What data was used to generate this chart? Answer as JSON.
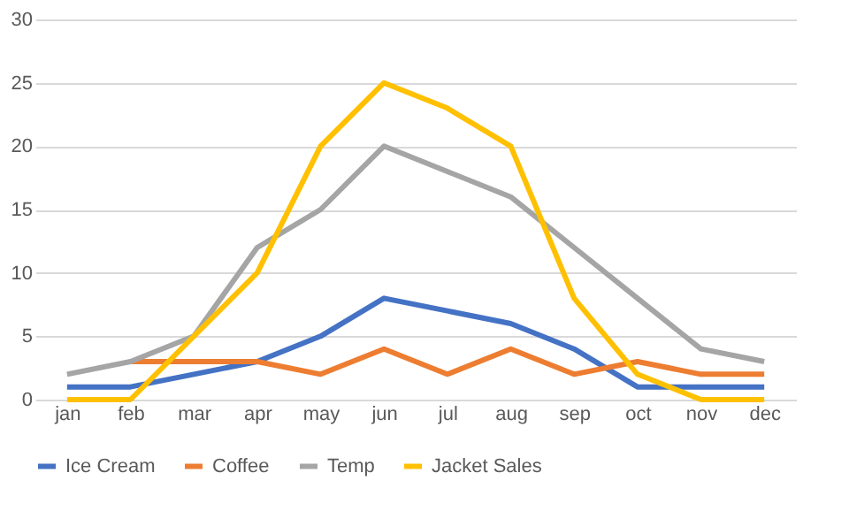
{
  "chart_data": {
    "type": "line",
    "categories": [
      "jan",
      "feb",
      "mar",
      "apr",
      "may",
      "jun",
      "jul",
      "aug",
      "sep",
      "oct",
      "nov",
      "dec"
    ],
    "series": [
      {
        "name": "Ice Cream",
        "color": "#4472c4",
        "values": [
          1,
          1,
          2,
          3,
          5,
          8,
          7,
          6,
          4,
          1,
          1,
          1
        ]
      },
      {
        "name": "Coffee",
        "color": "#ed7d31",
        "values": [
          null,
          3,
          3,
          3,
          2,
          4,
          2,
          4,
          2,
          3,
          2,
          2
        ]
      },
      {
        "name": "Temp",
        "color": "#a5a5a5",
        "values": [
          2,
          3,
          5,
          12,
          15,
          20,
          18,
          16,
          12,
          8,
          4,
          3
        ]
      },
      {
        "name": "Jacket Sales",
        "color": "#ffc000",
        "values": [
          0,
          0,
          5,
          10,
          20,
          25,
          23,
          20,
          8,
          2,
          0,
          0
        ]
      }
    ],
    "ylim": [
      0,
      30
    ],
    "yticks": [
      0,
      5,
      10,
      15,
      20,
      25,
      30
    ],
    "grid": "y",
    "legend": "bottom",
    "marker": "none",
    "line_style": "solid"
  }
}
